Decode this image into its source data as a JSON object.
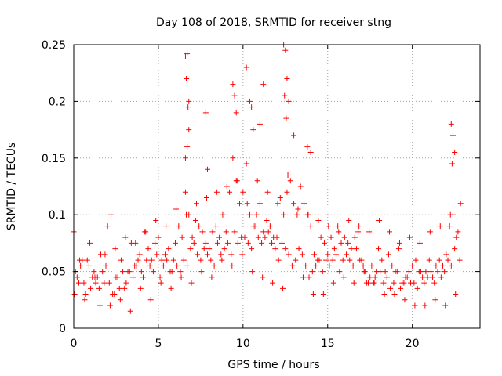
{
  "chart_data": {
    "type": "scatter",
    "title": "Day 108 of 2018, SRMTID for receiver stng",
    "xlabel": "GPS time / hours",
    "ylabel": "SRMTID / TECUs",
    "xlim": [
      0,
      24
    ],
    "ylim": [
      0,
      0.25
    ],
    "x_ticks": [
      0,
      5,
      10,
      15,
      20
    ],
    "x_tick_labels": [
      "0",
      "5",
      "10",
      "15",
      "20"
    ],
    "y_ticks": [
      0,
      0.05,
      0.1,
      0.15,
      0.2,
      0.25
    ],
    "y_tick_labels": [
      "0",
      "0.05",
      "0.1",
      "0.15",
      "0.2",
      "0.25"
    ],
    "grid": true,
    "marker": "+",
    "color": "#ff0000",
    "series": [
      {
        "name": "SRMTID",
        "x": [
          0.0,
          0.2,
          0.4,
          0.6,
          0.8,
          1.0,
          1.2,
          1.4,
          1.6,
          1.8,
          2.0,
          2.2,
          2.4,
          2.6,
          2.8,
          3.0,
          3.2,
          3.4,
          3.6,
          3.8,
          4.0,
          4.2,
          4.4,
          4.6,
          4.8,
          5.0,
          5.2,
          5.4,
          5.6,
          5.8,
          6.0,
          6.2,
          6.4,
          6.6,
          6.8,
          7.0,
          7.2,
          7.4,
          7.6,
          7.8,
          8.0,
          8.2,
          8.4,
          8.6,
          8.8,
          9.0,
          9.2,
          9.4,
          9.6,
          9.8,
          10.0,
          10.2,
          10.4,
          10.6,
          10.8,
          11.0,
          11.2,
          11.4,
          11.6,
          11.8,
          12.0,
          12.2,
          12.4,
          12.6,
          12.8,
          13.0,
          13.2,
          13.4,
          13.6,
          13.8,
          14.0,
          14.2,
          14.4,
          14.6,
          14.8,
          15.0,
          15.2,
          15.4,
          15.6,
          15.8,
          16.0,
          16.2,
          16.4,
          16.6,
          16.8,
          17.0,
          17.2,
          17.4,
          17.6,
          17.8,
          18.0,
          18.2,
          18.4,
          18.6,
          18.8,
          19.0,
          19.2,
          19.4,
          19.6,
          19.8,
          20.0,
          20.2,
          20.4,
          20.6,
          20.8,
          21.0,
          21.2,
          21.4,
          21.6,
          21.8,
          22.0,
          22.2,
          22.4,
          22.6,
          22.8,
          0.1,
          0.3,
          0.5,
          0.7,
          0.9,
          1.1,
          1.3,
          1.5,
          1.7,
          1.9,
          2.1,
          2.3,
          2.5,
          2.7,
          2.9,
          3.1,
          3.3,
          3.5,
          3.7,
          3.9,
          4.1,
          4.3,
          4.5,
          4.7,
          4.9,
          5.1,
          5.3,
          5.5,
          5.7,
          5.9,
          6.1,
          6.3,
          6.5,
          6.7,
          6.9,
          7.1,
          7.3,
          7.5,
          7.7,
          7.9,
          8.1,
          8.3,
          8.5,
          8.7,
          8.9,
          9.1,
          9.3,
          9.5,
          9.7,
          9.9,
          10.1,
          10.3,
          10.5,
          10.7,
          10.9,
          11.1,
          11.3,
          11.5,
          11.7,
          11.9,
          12.1,
          12.3,
          12.5,
          12.7,
          12.9,
          13.1,
          13.3,
          13.5,
          13.7,
          13.9,
          14.1,
          14.3,
          14.5,
          14.7,
          14.9,
          15.1,
          15.3,
          15.5,
          15.7,
          15.9,
          16.1,
          16.3,
          16.5,
          16.7,
          16.9,
          17.1,
          17.3,
          17.5,
          17.7,
          17.9,
          18.1,
          18.3,
          18.5,
          18.7,
          18.9,
          19.1,
          19.3,
          19.5,
          19.7,
          19.9,
          20.1,
          20.3,
          20.5,
          20.7,
          20.9,
          21.1,
          21.3,
          21.5,
          21.7,
          21.9,
          22.1,
          22.3,
          22.5,
          22.7,
          0.05,
          0.35,
          0.65,
          0.95,
          1.25,
          1.55,
          1.85,
          2.15,
          2.45,
          2.75,
          3.05,
          3.35,
          3.65,
          3.95,
          4.25,
          4.55,
          4.85,
          5.15,
          5.45,
          5.75,
          6.05,
          6.35,
          6.65,
          6.95,
          7.25,
          7.55,
          7.85,
          8.15,
          8.45,
          8.75,
          9.05,
          9.35,
          9.65,
          9.95,
          10.25,
          10.55,
          10.85,
          11.15,
          11.45,
          11.75,
          12.05,
          12.35,
          12.65,
          12.95,
          13.25,
          13.55,
          13.85,
          14.15,
          14.45,
          14.75,
          15.05,
          15.35,
          15.65,
          15.95,
          16.25,
          16.55,
          16.85,
          17.15,
          17.45,
          17.75,
          18.05,
          18.35,
          18.65,
          18.95,
          19.25,
          19.55,
          19.85,
          20.15,
          20.45,
          20.75,
          21.05,
          21.35,
          21.65,
          21.95,
          22.25,
          22.55,
          22.85,
          6.6,
          6.7,
          6.8,
          6.65,
          6.75,
          6.7,
          6.8,
          6.6,
          7.8,
          7.9,
          9.4,
          9.5,
          9.6,
          10.2,
          10.4,
          10.5,
          10.6,
          11.0,
          11.2,
          12.4,
          12.5,
          12.6,
          12.45,
          12.55,
          12.7,
          13.0,
          13.8,
          14.0,
          22.3,
          22.4,
          22.5,
          22.35
        ],
        "y": [
          0.085,
          0.045,
          0.055,
          0.04,
          0.06,
          0.035,
          0.05,
          0.045,
          0.065,
          0.04,
          0.09,
          0.1,
          0.03,
          0.045,
          0.06,
          0.035,
          0.05,
          0.075,
          0.055,
          0.06,
          0.05,
          0.085,
          0.07,
          0.06,
          0.075,
          0.08,
          0.06,
          0.065,
          0.07,
          0.05,
          0.075,
          0.09,
          0.08,
          0.12,
          0.1,
          0.08,
          0.095,
          0.09,
          0.085,
          0.075,
          0.07,
          0.085,
          0.09,
          0.08,
          0.1,
          0.085,
          0.12,
          0.15,
          0.13,
          0.11,
          0.12,
          0.145,
          0.1,
          0.09,
          0.1,
          0.11,
          0.085,
          0.095,
          0.09,
          0.08,
          0.08,
          0.115,
          0.1,
          0.12,
          0.13,
          0.11,
          0.1,
          0.125,
          0.11,
          0.1,
          0.09,
          0.065,
          0.06,
          0.08,
          0.075,
          0.065,
          0.08,
          0.07,
          0.09,
          0.075,
          0.08,
          0.075,
          0.07,
          0.08,
          0.085,
          0.06,
          0.05,
          0.04,
          0.055,
          0.045,
          0.07,
          0.06,
          0.05,
          0.065,
          0.055,
          0.05,
          0.07,
          0.04,
          0.045,
          0.05,
          0.055,
          0.06,
          0.05,
          0.045,
          0.05,
          0.06,
          0.045,
          0.055,
          0.06,
          0.055,
          0.065,
          0.09,
          0.1,
          0.08,
          0.06,
          0.05,
          0.04,
          0.06,
          0.03,
          0.055,
          0.045,
          0.04,
          0.035,
          0.05,
          0.055,
          0.04,
          0.03,
          0.045,
          0.035,
          0.05,
          0.04,
          0.05,
          0.045,
          0.055,
          0.065,
          0.045,
          0.06,
          0.055,
          0.05,
          0.065,
          0.045,
          0.055,
          0.06,
          0.05,
          0.06,
          0.055,
          0.05,
          0.06,
          0.055,
          0.07,
          0.075,
          0.065,
          0.06,
          0.07,
          0.065,
          0.06,
          0.055,
          0.075,
          0.065,
          0.07,
          0.075,
          0.065,
          0.085,
          0.075,
          0.08,
          0.08,
          0.075,
          0.07,
          0.09,
          0.08,
          0.075,
          0.08,
          0.085,
          0.075,
          0.07,
          0.06,
          0.075,
          0.07,
          0.065,
          0.055,
          0.06,
          0.07,
          0.065,
          0.055,
          0.045,
          0.05,
          0.055,
          0.06,
          0.05,
          0.06,
          0.055,
          0.06,
          0.065,
          0.05,
          0.06,
          0.065,
          0.06,
          0.055,
          0.07,
          0.06,
          0.055,
          0.04,
          0.045,
          0.04,
          0.05,
          0.05,
          0.04,
          0.045,
          0.035,
          0.04,
          0.05,
          0.035,
          0.04,
          0.045,
          0.04,
          0.04,
          0.035,
          0.05,
          0.04,
          0.045,
          0.05,
          0.04,
          0.05,
          0.045,
          0.05,
          0.06,
          0.055,
          0.07,
          0.085,
          0.03,
          0.06,
          0.025,
          0.075,
          0.045,
          0.02,
          0.065,
          0.02,
          0.07,
          0.025,
          0.08,
          0.015,
          0.075,
          0.035,
          0.085,
          0.025,
          0.095,
          0.04,
          0.09,
          0.035,
          0.105,
          0.045,
          0.1,
          0.04,
          0.11,
          0.05,
          0.115,
          0.045,
          0.12,
          0.06,
          0.125,
          0.055,
          0.13,
          0.065,
          0.11,
          0.05,
          0.13,
          0.045,
          0.12,
          0.04,
          0.11,
          0.035,
          0.135,
          0.055,
          0.105,
          0.045,
          0.1,
          0.03,
          0.095,
          0.03,
          0.09,
          0.04,
          0.085,
          0.045,
          0.095,
          0.04,
          0.09,
          0.05,
          0.085,
          0.04,
          0.095,
          0.03,
          0.085,
          0.03,
          0.075,
          0.025,
          0.08,
          0.02,
          0.075,
          0.02,
          0.085,
          0.025,
          0.09,
          0.02,
          0.1,
          0.03,
          0.11,
          0.24,
          0.242,
          0.2,
          0.22,
          0.195,
          0.16,
          0.175,
          0.15,
          0.19,
          0.14,
          0.215,
          0.205,
          0.19,
          0.23,
          0.2,
          0.195,
          0.175,
          0.18,
          0.215,
          0.25,
          0.245,
          0.22,
          0.205,
          0.185,
          0.2,
          0.17,
          0.16,
          0.155,
          0.18,
          0.17,
          0.155,
          0.145
        ]
      }
    ]
  }
}
